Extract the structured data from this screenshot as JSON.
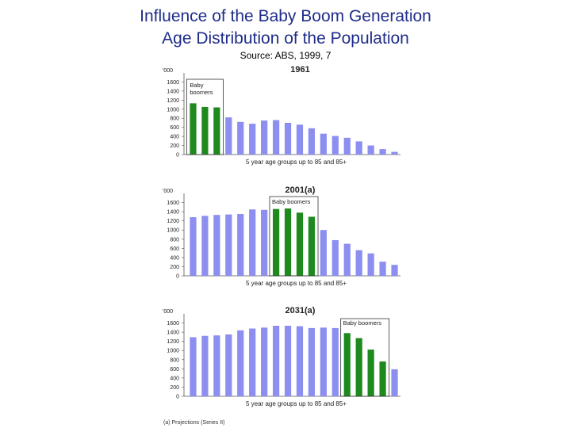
{
  "title_line1": "Influence of the Baby Boom Generation",
  "title_line2": "Age Distribution of the Population",
  "source": "Source:  ABS, 1999, 7",
  "footnote": "(a) Projections (Series II)",
  "colors": {
    "other": "#8c8ff0",
    "boomers": "#1e8a1e",
    "title": "#1f2d8a"
  },
  "chart_data": [
    {
      "type": "bar",
      "title": "1961",
      "unit_label": "'000",
      "xlabel": "5 year age groups up to 85 and 85+",
      "ylim": [
        0,
        1800
      ],
      "yticks": [
        0,
        200,
        400,
        600,
        800,
        1000,
        1200,
        1400,
        1600
      ],
      "callout": "Baby boomers",
      "boomer_indices": [
        0,
        1,
        2
      ],
      "values": [
        1130,
        1050,
        1040,
        820,
        720,
        680,
        750,
        760,
        700,
        660,
        580,
        460,
        410,
        370,
        290,
        200,
        120,
        60
      ]
    },
    {
      "type": "bar",
      "title": "2001(a)",
      "unit_label": "'000",
      "xlabel": "5 year age groups up to 85 and 85+",
      "ylim": [
        0,
        1800
      ],
      "yticks": [
        0,
        200,
        400,
        600,
        800,
        1000,
        1200,
        1400,
        1600
      ],
      "callout": "Baby boomers",
      "boomer_indices": [
        7,
        8,
        9,
        10
      ],
      "values": [
        1280,
        1310,
        1330,
        1340,
        1350,
        1450,
        1440,
        1460,
        1470,
        1380,
        1290,
        1000,
        780,
        700,
        560,
        490,
        310,
        240
      ]
    },
    {
      "type": "bar",
      "title": "2031(a)",
      "unit_label": "'000",
      "xlabel": "5 year age groups up to 85 and 85+",
      "ylim": [
        0,
        1800
      ],
      "yticks": [
        0,
        200,
        400,
        600,
        800,
        1000,
        1200,
        1400,
        1600
      ],
      "callout": "Baby boomers",
      "boomer_indices": [
        13,
        14,
        15,
        16
      ],
      "values": [
        1290,
        1320,
        1330,
        1350,
        1440,
        1480,
        1500,
        1540,
        1540,
        1530,
        1490,
        1500,
        1490,
        1380,
        1270,
        1020,
        760,
        590
      ]
    }
  ]
}
